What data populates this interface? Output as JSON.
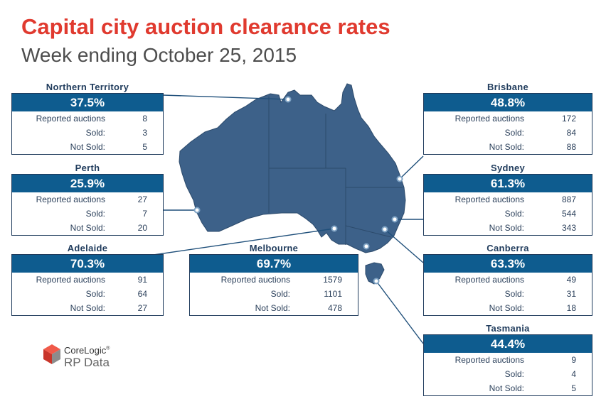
{
  "header": {
    "title": "Capital city auction clearance rates",
    "subtitle": "Week ending October 25, 2015"
  },
  "labels": {
    "reported": "Reported auctions",
    "sold": "Sold:",
    "not_sold": "Not Sold:"
  },
  "cities": [
    {
      "name": "Northern Territory",
      "rate": "37.5%",
      "reported": "8",
      "sold": "3",
      "not_sold": "5"
    },
    {
      "name": "Perth",
      "rate": "25.9%",
      "reported": "27",
      "sold": "7",
      "not_sold": "20"
    },
    {
      "name": "Adelaide",
      "rate": "70.3%",
      "reported": "91",
      "sold": "64",
      "not_sold": "27"
    },
    {
      "name": "Melbourne",
      "rate": "69.7%",
      "reported": "1579",
      "sold": "1101",
      "not_sold": "478"
    },
    {
      "name": "Brisbane",
      "rate": "48.8%",
      "reported": "172",
      "sold": "84",
      "not_sold": "88"
    },
    {
      "name": "Sydney",
      "rate": "61.3%",
      "reported": "887",
      "sold": "544",
      "not_sold": "343"
    },
    {
      "name": "Canberra",
      "rate": "63.3%",
      "reported": "49",
      "sold": "31",
      "not_sold": "18"
    },
    {
      "name": "Tasmania",
      "rate": "44.4%",
      "reported": "9",
      "sold": "4",
      "not_sold": "5"
    }
  ],
  "logo": {
    "brand": "CoreLogic",
    "trademark": "®",
    "product": "RP Data"
  },
  "colors": {
    "title": "#e03a2f",
    "map_fill": "#3d6189",
    "rate_header": "#0e5c8f",
    "connector": "#1f4f7a"
  }
}
